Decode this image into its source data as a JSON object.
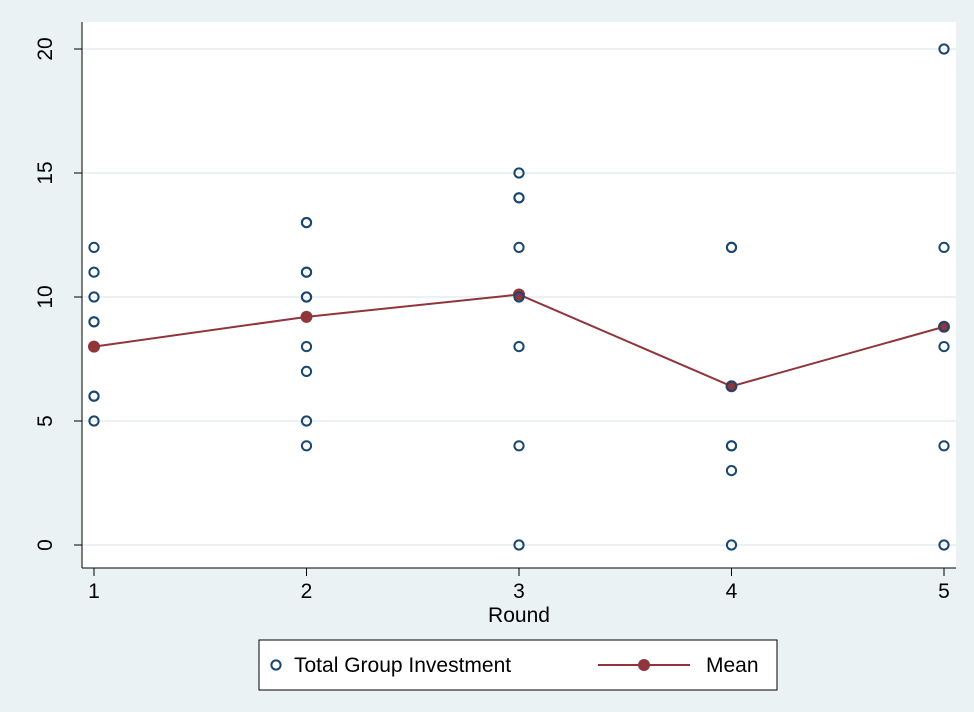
{
  "chart_data": {
    "type": "scatter",
    "title": "",
    "xlabel": "Round",
    "ylabel": "",
    "xlim": [
      1,
      5
    ],
    "ylim": [
      0,
      20
    ],
    "x_ticks": [
      "1",
      "2",
      "3",
      "4",
      "5"
    ],
    "y_ticks": [
      "0",
      "5",
      "10",
      "15",
      "20"
    ],
    "grid": "horizontal",
    "legend_position": "bottom",
    "colors": {
      "outer_background": "#eaf2f3",
      "plot_background": "#ffffff",
      "gridline": "#eaf2f3",
      "scatter": "#1a476f",
      "mean": "#90353b"
    },
    "series": [
      {
        "name": "Total Group Investment",
        "kind": "scatter",
        "points": [
          [
            1,
            12
          ],
          [
            1,
            11
          ],
          [
            1,
            10
          ],
          [
            1,
            9
          ],
          [
            1,
            9
          ],
          [
            1,
            6
          ],
          [
            1,
            6
          ],
          [
            1,
            5
          ],
          [
            2,
            13
          ],
          [
            2,
            13
          ],
          [
            2,
            11
          ],
          [
            2,
            11
          ],
          [
            2,
            10
          ],
          [
            2,
            10
          ],
          [
            2,
            8
          ],
          [
            2,
            7
          ],
          [
            2,
            5
          ],
          [
            2,
            4
          ],
          [
            3,
            15
          ],
          [
            3,
            14
          ],
          [
            3,
            14
          ],
          [
            3,
            12
          ],
          [
            3,
            10
          ],
          [
            3,
            8
          ],
          [
            3,
            4
          ],
          [
            3,
            0
          ],
          [
            4,
            12
          ],
          [
            4,
            12
          ],
          [
            4,
            6.4
          ],
          [
            4,
            4
          ],
          [
            4,
            4
          ],
          [
            4,
            3
          ],
          [
            4,
            0
          ],
          [
            5,
            20
          ],
          [
            5,
            12
          ],
          [
            5,
            8.8
          ],
          [
            5,
            8
          ],
          [
            5,
            4
          ],
          [
            5,
            0
          ]
        ]
      },
      {
        "name": "Mean",
        "kind": "line",
        "points": [
          [
            1,
            8
          ],
          [
            2,
            9.2
          ],
          [
            3,
            10.1
          ],
          [
            4,
            6.4
          ],
          [
            5,
            8.8
          ]
        ]
      }
    ]
  }
}
